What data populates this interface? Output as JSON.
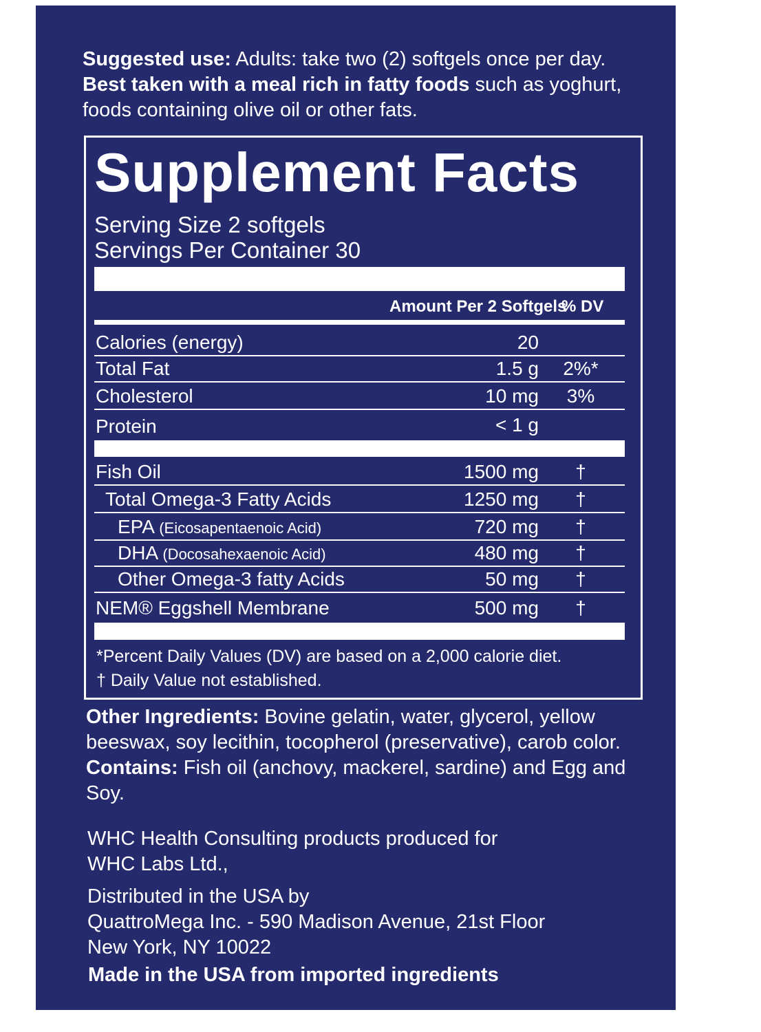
{
  "suggested_use": {
    "label": "Suggested use:",
    "text": "Adults: take two (2) softgels once per day.",
    "bold": "Best taken with a meal rich in fatty foods",
    "text_end": "such as yoghurt, foods containing olive oil or other fats."
  },
  "facts": {
    "title": "Supplement Facts",
    "serving_size": "Serving Size 2 softgels",
    "servings_per_container": "Servings Per Container 30",
    "header": {
      "amount": "Amount Per 2 Softgels",
      "dv": "% DV"
    },
    "rows": [
      {
        "name": "Calories (energy)",
        "amount": "20"
      },
      {
        "name": "Total Fat",
        "amount": "1.5 g",
        "dv": "2%*"
      },
      {
        "name": "Cholesterol",
        "amount": "10 mg",
        "dv": "3%"
      },
      {
        "name": "Protein",
        "amount": "< 1 g"
      },
      {
        "name": "Fish Oil",
        "amount": "1500 mg",
        "dv": "†"
      },
      {
        "name": "Total Omega-3 Fatty Acids",
        "amount": "1250 mg",
        "dv": "†"
      },
      {
        "name": "EPA",
        "note": "(Eicosapentaenoic Acid)",
        "amount": "720 mg",
        "dv": "†"
      },
      {
        "name": "DHA",
        "note": "(Docosahexaenoic Acid)",
        "amount": "480 mg",
        "dv": "†"
      },
      {
        "name": "Other Omega-3 fatty Acids",
        "amount": "50 mg",
        "dv": "†"
      },
      {
        "name": "NEM® Eggshell Membrane",
        "amount": "500 mg",
        "dv": "†"
      }
    ],
    "footnotes": [
      "*Percent Daily Values (DV) are based on a 2,000 calorie diet.",
      "† Daily Value not established."
    ]
  },
  "other_ingredients": {
    "label": "Other Ingredients:",
    "text": "Bovine gelatin, water, glycerol, yellow beeswax, soy lecithin, tocopherol (preservative), carob color.",
    "contains_label": "Contains:",
    "contains": "Fish oil (anchovy, mackerel, sardine) and Egg and Soy."
  },
  "company": {
    "produced": [
      "WHC Health Consulting products produced for",
      "WHC Labs Ltd.,"
    ],
    "distributed": [
      "Distributed in the USA by",
      "QuattroMega Inc. - 590 Madison Avenue, 21st Floor",
      "New York, NY 10022"
    ],
    "made_in": "Made in the USA from imported ingredients"
  }
}
